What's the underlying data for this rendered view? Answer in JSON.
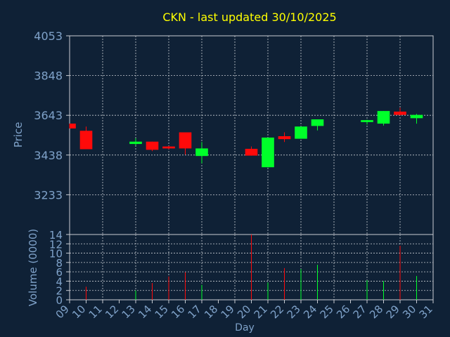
{
  "chart_data": [
    {
      "type": "candlestick",
      "title": "CKN - last updated 30/10/2025",
      "xlabel": "",
      "ylabel": "Price",
      "ylim": [
        3028,
        4053
      ],
      "yticks": [
        4053,
        3848,
        3643,
        3438,
        3233
      ],
      "days": [
        "09",
        "10",
        "11",
        "12",
        "13",
        "14",
        "15",
        "16",
        "17",
        "18",
        "19",
        "20",
        "21",
        "22",
        "23",
        "24",
        "25",
        "26",
        "27",
        "28",
        "29",
        "30",
        "31"
      ],
      "grid": true,
      "candles": [
        {
          "day": 9,
          "open": 3600,
          "close": 3575,
          "high": 3600,
          "low": 3575
        },
        {
          "day": 10,
          "open": 3563,
          "close": 3468,
          "high": 3585,
          "low": 3468
        },
        {
          "day": 13,
          "open": 3495,
          "close": 3507,
          "high": 3525,
          "low": 3488
        },
        {
          "day": 14,
          "open": 3507,
          "close": 3465,
          "high": 3507,
          "low": 3458
        },
        {
          "day": 15,
          "open": 3482,
          "close": 3472,
          "high": 3485,
          "low": 3468
        },
        {
          "day": 16,
          "open": 3555,
          "close": 3472,
          "high": 3555,
          "low": 3440
        },
        {
          "day": 17,
          "open": 3433,
          "close": 3472,
          "high": 3505,
          "low": 3395
        },
        {
          "day": 20,
          "open": 3470,
          "close": 3435,
          "high": 3482,
          "low": 3435
        },
        {
          "day": 21,
          "open": 3375,
          "close": 3528,
          "high": 3528,
          "low": 3375
        },
        {
          "day": 22,
          "open": 3535,
          "close": 3520,
          "high": 3555,
          "low": 3505
        },
        {
          "day": 23,
          "open": 3522,
          "close": 3585,
          "high": 3585,
          "low": 3522
        },
        {
          "day": 24,
          "open": 3588,
          "close": 3622,
          "high": 3622,
          "low": 3565
        },
        {
          "day": 27,
          "open": 3608,
          "close": 3618,
          "high": 3620,
          "low": 3595
        },
        {
          "day": 28,
          "open": 3600,
          "close": 3665,
          "high": 3665,
          "low": 3590
        },
        {
          "day": 29,
          "open": 3662,
          "close": 3645,
          "high": 3682,
          "low": 3642
        },
        {
          "day": 30,
          "open": 3628,
          "close": 3645,
          "high": 3650,
          "low": 3600
        }
      ]
    },
    {
      "type": "bar",
      "title": "",
      "xlabel": "Day",
      "ylabel": "Volume (0000)",
      "ylim": [
        0,
        14
      ],
      "yticks": [
        0,
        2,
        4,
        6,
        8,
        10,
        12,
        14
      ],
      "days": [
        "09",
        "10",
        "11",
        "12",
        "13",
        "14",
        "15",
        "16",
        "17",
        "18",
        "19",
        "20",
        "21",
        "22",
        "23",
        "24",
        "25",
        "26",
        "27",
        "28",
        "29",
        "30",
        "31"
      ],
      "grid": true,
      "volumes": [
        {
          "day": 10,
          "value": 2.8,
          "dir": "down"
        },
        {
          "day": 13,
          "value": 2.0,
          "dir": "up"
        },
        {
          "day": 14,
          "value": 3.6,
          "dir": "down"
        },
        {
          "day": 15,
          "value": 5.0,
          "dir": "down"
        },
        {
          "day": 16,
          "value": 5.9,
          "dir": "down"
        },
        {
          "day": 17,
          "value": 3.2,
          "dir": "up"
        },
        {
          "day": 20,
          "value": 14.0,
          "dir": "down"
        },
        {
          "day": 21,
          "value": 3.7,
          "dir": "up"
        },
        {
          "day": 22,
          "value": 6.8,
          "dir": "down"
        },
        {
          "day": 23,
          "value": 6.6,
          "dir": "up"
        },
        {
          "day": 24,
          "value": 7.5,
          "dir": "up"
        },
        {
          "day": 27,
          "value": 4.2,
          "dir": "up"
        },
        {
          "day": 28,
          "value": 4.0,
          "dir": "up"
        },
        {
          "day": 29,
          "value": 11.6,
          "dir": "down"
        },
        {
          "day": 30,
          "value": 5.1,
          "dir": "up"
        }
      ]
    }
  ],
  "colors": {
    "background": "#0f2136",
    "grid": "#c8ccd2",
    "axis_text": "#7fa2c9",
    "title": "#ffff00",
    "up": "#00ff2a",
    "down": "#ff0a0a"
  }
}
